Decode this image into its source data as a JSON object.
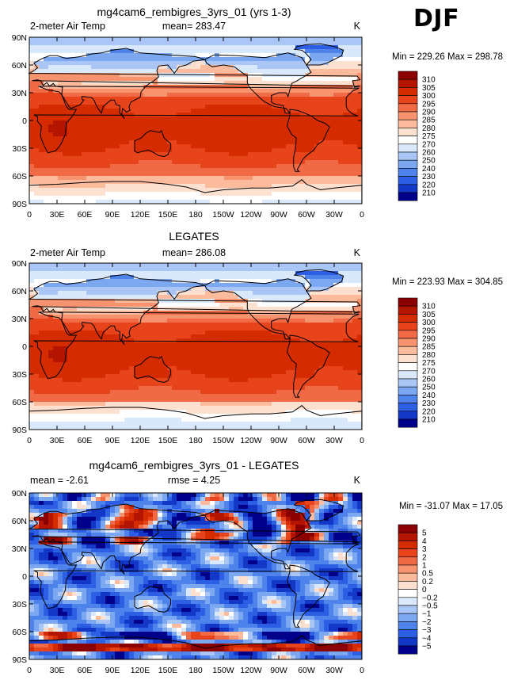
{
  "season": "DJF",
  "axes": {
    "lat_ticks": [
      "90N",
      "60N",
      "30N",
      "0",
      "30S",
      "60S",
      "90S"
    ],
    "lon_ticks": [
      "0",
      "30E",
      "60E",
      "90E",
      "120E",
      "150E",
      "180",
      "150W",
      "120W",
      "90W",
      "60W",
      "30W",
      "0"
    ]
  },
  "chart_data": [
    {
      "type": "heatmap",
      "title": "mg4cam6_rembigres_3yrs_01 (yrs 1-3)",
      "left_label": "2-meter Air Temp",
      "center_label": "mean= 283.47",
      "right_label": "K",
      "min_max": "Min = 229.26 Max = 298.78",
      "stats": {
        "mean": 283.47,
        "min": 229.26,
        "max": 298.78,
        "units": "K"
      },
      "x_range": [
        0,
        360
      ],
      "y_range": [
        -90,
        90
      ],
      "colorbar": {
        "levels": [
          "310",
          "305",
          "300",
          "295",
          "290",
          "285",
          "280",
          "275",
          "270",
          "260",
          "250",
          "240",
          "230",
          "220",
          "210"
        ],
        "colors": [
          "#8b0000",
          "#b31500",
          "#d42c00",
          "#e8441c",
          "#f06a45",
          "#f7946f",
          "#fbbb9c",
          "#fde1d0",
          "#ffffff",
          "#dae8fb",
          "#a9c6f6",
          "#7ca7f1",
          "#4f83ec",
          "#2c5fe3",
          "#1338c8",
          "#00008b"
        ]
      }
    },
    {
      "type": "heatmap",
      "title": "LEGATES",
      "left_label": "2-meter Air Temp",
      "center_label": "mean= 286.08",
      "right_label": "K",
      "min_max": "Min = 223.93 Max = 304.85",
      "stats": {
        "mean": 286.08,
        "min": 223.93,
        "max": 304.85,
        "units": "K"
      },
      "x_range": [
        0,
        360
      ],
      "y_range": [
        -90,
        90
      ],
      "colorbar": {
        "levels": [
          "310",
          "305",
          "300",
          "295",
          "290",
          "285",
          "280",
          "275",
          "270",
          "260",
          "250",
          "240",
          "230",
          "220",
          "210"
        ],
        "colors": [
          "#8b0000",
          "#b31500",
          "#d42c00",
          "#e8441c",
          "#f06a45",
          "#f7946f",
          "#fbbb9c",
          "#fde1d0",
          "#ffffff",
          "#dae8fb",
          "#a9c6f6",
          "#7ca7f1",
          "#4f83ec",
          "#2c5fe3",
          "#1338c8",
          "#00008b"
        ]
      }
    },
    {
      "type": "heatmap",
      "title": "mg4cam6_rembigres_3yrs_01 - LEGATES",
      "left_label": "mean =  -2.61",
      "center_label": "rmse =    4.25",
      "right_label": "K",
      "min_max": "Min = -31.07 Max =  17.05",
      "stats": {
        "mean": -2.61,
        "rmse": 4.25,
        "min": -31.07,
        "max": 17.05,
        "units": "K"
      },
      "x_range": [
        0,
        360
      ],
      "y_range": [
        -90,
        90
      ],
      "colorbar": {
        "levels": [
          "5",
          "4",
          "3",
          "2",
          "1",
          "0.5",
          "0.2",
          "0",
          "-0.2",
          "-0.5",
          "-1",
          "-2",
          "-3",
          "-4",
          "-5"
        ],
        "colors": [
          "#8b0000",
          "#b31500",
          "#d42c00",
          "#e8441c",
          "#f06a45",
          "#f7946f",
          "#fbbb9c",
          "#fde1d0",
          "#ffffff",
          "#dae8fb",
          "#a9c6f6",
          "#7ca7f1",
          "#4f83ec",
          "#2c5fe3",
          "#1338c8",
          "#00008b"
        ]
      }
    }
  ]
}
